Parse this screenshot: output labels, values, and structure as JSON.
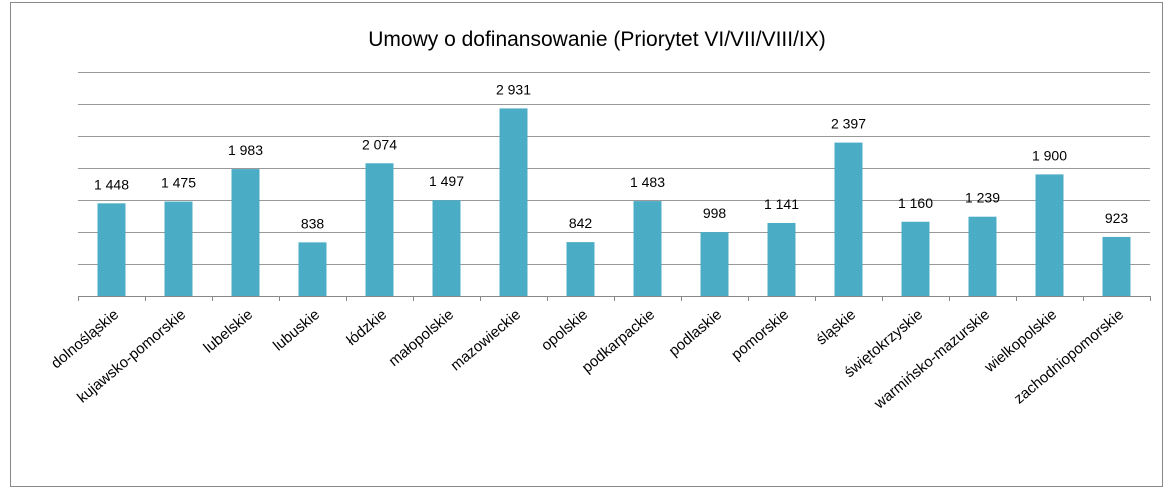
{
  "chart_data": {
    "type": "bar",
    "title": "Umowy o dofinansowanie (Priorytet VI/VII/VIII/IX)",
    "categories": [
      "dolnośląskie",
      "kujawsko-pomorskie",
      "lubelskie",
      "lubuskie",
      "łódzkie",
      "małopolskie",
      "mazowieckie",
      "opolskie",
      "podkarpackie",
      "podlaskie",
      "pomorskie",
      "śląskie",
      "świętokrzyskie",
      "warmińsko-mazurskie",
      "wielkopolskie",
      "zachodniopomorskie"
    ],
    "values": [
      1448,
      1475,
      1983,
      838,
      2074,
      1497,
      2931,
      842,
      1483,
      998,
      1141,
      2397,
      1160,
      1239,
      1900,
      923
    ],
    "value_labels": [
      "1 448",
      "1 475",
      "1 983",
      "838",
      "2 074",
      "1 497",
      "2 931",
      "842",
      "1 483",
      "998",
      "1 141",
      "2 397",
      "1 160",
      "1 239",
      "1 900",
      "923"
    ],
    "color": "#4bacc6",
    "ylim": [
      0,
      3500
    ],
    "yticks": [
      0,
      500,
      1000,
      1500,
      2000,
      2500,
      3000,
      3500
    ],
    "grid": true
  }
}
